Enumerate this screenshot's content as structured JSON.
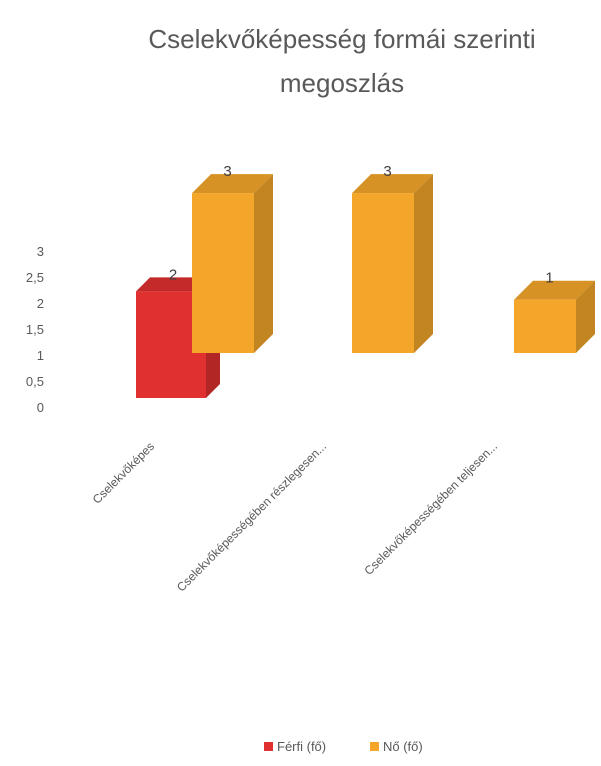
{
  "chart_data": {
    "type": "bar",
    "title_line1": "Cselekvőképesség formái szerinti",
    "title_line2": "megoszlás",
    "categories": [
      "Cselekvőképes",
      "Cselekvőképességében részlegesen...",
      "Cselekvőképességében teljesen..."
    ],
    "series": [
      {
        "name": "Férfi (fő)",
        "values": [
          2,
          null,
          null
        ],
        "color": "#e03030"
      },
      {
        "name": "Nő (fő)",
        "values": [
          3,
          3,
          1
        ],
        "color": "#f4a62a"
      }
    ],
    "yticks": [
      "0",
      "0,5",
      "1",
      "1,5",
      "2",
      "2,5",
      "3"
    ],
    "ylim": [
      0,
      3
    ],
    "legend_position": "bottom",
    "three_d": true
  }
}
